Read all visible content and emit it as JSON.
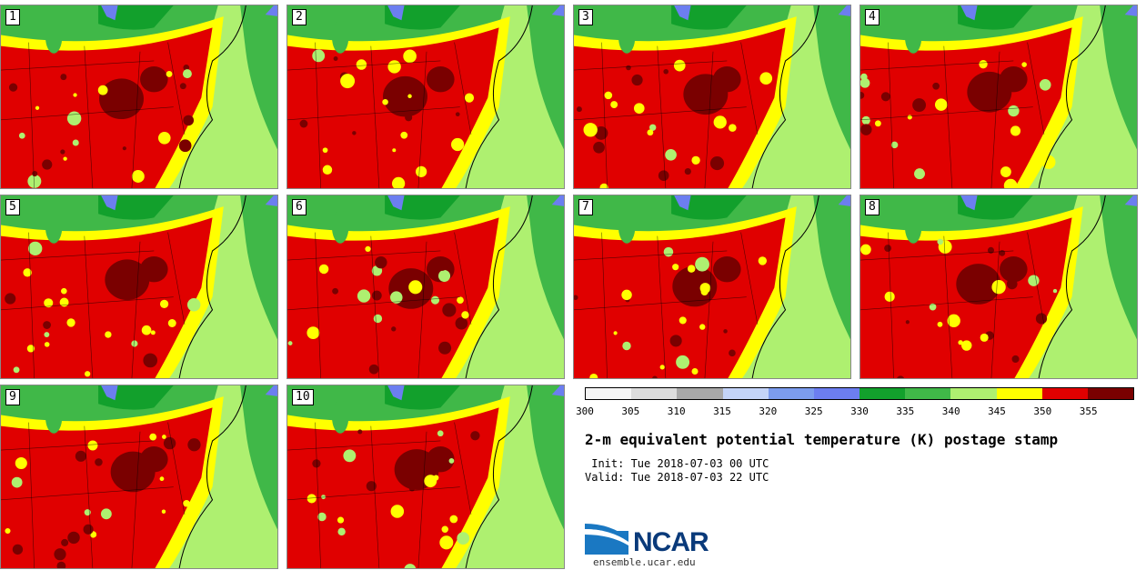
{
  "colors": {
    "bins": [
      "#f5f5f5",
      "#dcdcdc",
      "#a8a8a8",
      "#c4d4f8",
      "#7c9cee",
      "#6c7ef0",
      "#12a02c",
      "#40b848",
      "#aef070",
      "#ffff00",
      "#e00000",
      "#7a0000"
    ],
    "water_lakes": "#6c7ef0",
    "border": "#000000"
  },
  "panels": [
    {
      "label": "1"
    },
    {
      "label": "2"
    },
    {
      "label": "3"
    },
    {
      "label": "4"
    },
    {
      "label": "5"
    },
    {
      "label": "6"
    },
    {
      "label": "7"
    },
    {
      "label": "8"
    },
    {
      "label": "9"
    },
    {
      "label": "10"
    }
  ],
  "legend": {
    "ticks": [
      "300",
      "305",
      "310",
      "315",
      "320",
      "325",
      "330",
      "335",
      "340",
      "345",
      "350",
      "355"
    ]
  },
  "title": "2-m equivalent potential temperature (K) postage stamp",
  "init": " Init: Tue 2018-07-03 00 UTC",
  "valid": "Valid: Tue 2018-07-03 22 UTC",
  "logo": {
    "text": "NCAR",
    "site": "ensemble.ucar.edu"
  }
}
